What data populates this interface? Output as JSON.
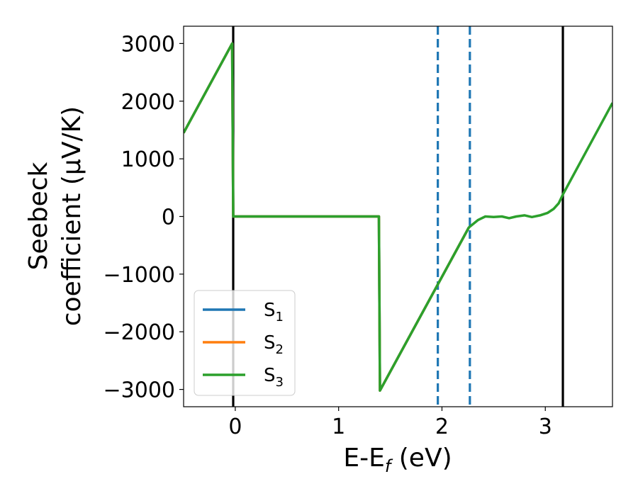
{
  "chart_data": {
    "type": "line",
    "xlabel": "E-E",
    "xlabel_sub": "f",
    "xlabel_unit": " (eV)",
    "ylabel_line1": "Seebeck",
    "ylabel_line2": "coefficient  (μV/K)",
    "xlim": [
      -0.5,
      3.65
    ],
    "ylim": [
      -3300,
      3300
    ],
    "x_ticks": [
      0,
      1,
      2,
      3
    ],
    "x_tick_labels": [
      "0",
      "1",
      "2",
      "3"
    ],
    "y_ticks": [
      -3000,
      -2000,
      -1000,
      0,
      1000,
      2000,
      3000
    ],
    "y_tick_labels": [
      "−3000",
      "−2000",
      "−1000",
      "0",
      "1000",
      "2000",
      "3000"
    ],
    "grid": false,
    "legend_position": "lower-left",
    "vlines_solid": [
      -0.02,
      3.17
    ],
    "vlines_dashed": [
      1.96,
      2.27
    ],
    "vline_solid_color": "#000000",
    "vline_dashed_color": "#1f77b4",
    "series": [
      {
        "name": "S1",
        "label_main": "S",
        "label_sub": "1",
        "color": "#1f77b4",
        "x": [
          -0.5,
          -0.03,
          -0.02,
          0.0,
          1.38,
          1.39,
          1.4,
          2.26
        ],
        "y": [
          1450,
          3000,
          0,
          0,
          0,
          0,
          -3020,
          -190
        ]
      },
      {
        "name": "S2",
        "label_main": "S",
        "label_sub": "2",
        "color": "#ff7f0e",
        "x": [
          -0.5,
          -0.03,
          -0.02,
          0.0,
          1.38,
          1.39,
          1.4,
          2.26
        ],
        "y": [
          1450,
          3000,
          0,
          0,
          0,
          0,
          -3020,
          -190
        ]
      },
      {
        "name": "S3",
        "label_main": "S",
        "label_sub": "3",
        "color": "#2ca02c",
        "x": [
          -0.5,
          -0.03,
          -0.02,
          0.0,
          1.38,
          1.39,
          1.4,
          2.26,
          2.35,
          2.42,
          2.5,
          2.58,
          2.65,
          2.72,
          2.8,
          2.87,
          2.95,
          3.02,
          3.08,
          3.13,
          3.17,
          3.65
        ],
        "y": [
          1450,
          3000,
          0,
          0,
          0,
          0,
          -3020,
          -190,
          -60,
          0,
          -10,
          0,
          -30,
          0,
          20,
          -10,
          20,
          60,
          130,
          230,
          380,
          1970
        ]
      }
    ]
  }
}
